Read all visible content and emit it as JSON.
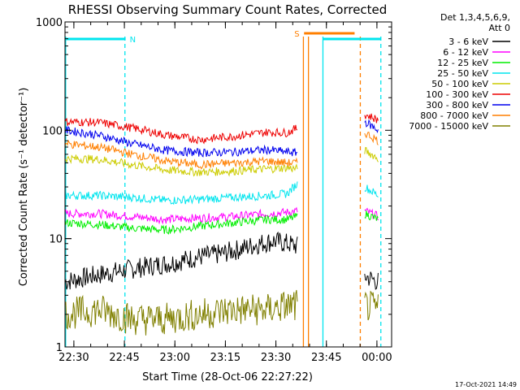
{
  "chart_data": {
    "type": "line",
    "title": "RHESSI Observing Summary Count Rates, Corrected",
    "xlabel": "Start Time (28-Oct-06 22:27:22)",
    "ylabel": "Corrected Count Rate (s⁻¹ detector⁻¹)",
    "yscale": "log",
    "ylim": [
      1,
      1000
    ],
    "xlim_minutes_after_22_27_22": [
      0,
      97
    ],
    "x_ticks": [
      "22:30",
      "22:45",
      "23:00",
      "23:15",
      "23:30",
      "23:45",
      "00:00"
    ],
    "y_ticks": [
      "1",
      "10",
      "100",
      "1000"
    ],
    "legend_header": [
      "Det 1,3,4,5,6,9,",
      "Att 0"
    ],
    "legend_position": "right",
    "timestamp": "17-Oct-2021 14:49",
    "flags": [
      {
        "label": "N",
        "color": "#00e5ee",
        "segments": [
          [
            0,
            18.0
          ],
          [
            76.6,
            93.8
          ]
        ]
      },
      {
        "label": "S",
        "color": "#ff7f00",
        "segments": [
          [
            71.0,
            86.0
          ]
        ]
      }
    ],
    "vlines": [
      {
        "t": 0.2,
        "color": "#00e5ee",
        "style": "solid"
      },
      {
        "t": 17.8,
        "color": "#00e5ee",
        "style": "dashed"
      },
      {
        "t": 70.8,
        "color": "#ff7f00",
        "style": "solid"
      },
      {
        "t": 72.3,
        "color": "#ff7f00",
        "style": "solid"
      },
      {
        "t": 76.6,
        "color": "#00e5ee",
        "style": "solid"
      },
      {
        "t": 87.7,
        "color": "#ff7f00",
        "style": "dashed"
      },
      {
        "t": 93.8,
        "color": "#00e5ee",
        "style": "dashed"
      }
    ],
    "series": [
      {
        "name": "3 - 6 keV",
        "color": "#000000",
        "points": [
          [
            0,
            4
          ],
          [
            8,
            4.5
          ],
          [
            16,
            5
          ],
          [
            24,
            5.5
          ],
          [
            32,
            6
          ],
          [
            40,
            6.8
          ],
          [
            46,
            7.2
          ],
          [
            52,
            8
          ],
          [
            58,
            9
          ],
          [
            62,
            9.5
          ],
          [
            66,
            9
          ],
          [
            69,
            8.5
          ]
        ],
        "points_after": [
          [
            89,
            4.5
          ],
          [
            93,
            4
          ]
        ]
      },
      {
        "name": "6 - 12 keV",
        "color": "#ff00ff",
        "points": [
          [
            0,
            17
          ],
          [
            10,
            17
          ],
          [
            20,
            16
          ],
          [
            30,
            15
          ],
          [
            40,
            15.5
          ],
          [
            50,
            16
          ],
          [
            60,
            17
          ],
          [
            66,
            17.5
          ],
          [
            69,
            18
          ]
        ],
        "points_after": [
          [
            89,
            18
          ],
          [
            93,
            16
          ]
        ]
      },
      {
        "name": "12 - 25 keV",
        "color": "#00ee00",
        "points": [
          [
            0,
            14
          ],
          [
            10,
            13.5
          ],
          [
            20,
            12.5
          ],
          [
            30,
            12
          ],
          [
            40,
            13
          ],
          [
            50,
            14
          ],
          [
            60,
            15
          ],
          [
            66,
            15
          ],
          [
            69,
            16
          ]
        ],
        "points_after": [
          [
            89,
            17
          ],
          [
            93,
            15
          ]
        ]
      },
      {
        "name": "25 - 50 keV",
        "color": "#00e5ee",
        "points": [
          [
            0,
            25
          ],
          [
            10,
            25
          ],
          [
            20,
            24
          ],
          [
            30,
            22.5
          ],
          [
            40,
            23
          ],
          [
            50,
            24
          ],
          [
            60,
            25
          ],
          [
            66,
            26
          ],
          [
            69,
            32
          ]
        ],
        "points_after": [
          [
            89,
            30
          ],
          [
            93,
            25
          ]
        ]
      },
      {
        "name": "50 - 100 keV",
        "color": "#cccc00",
        "points": [
          [
            0,
            55
          ],
          [
            10,
            54
          ],
          [
            20,
            48
          ],
          [
            30,
            43
          ],
          [
            40,
            41
          ],
          [
            50,
            42
          ],
          [
            60,
            44
          ],
          [
            66,
            45
          ],
          [
            69,
            44
          ]
        ],
        "points_after": [
          [
            89,
            65
          ],
          [
            93,
            55
          ]
        ]
      },
      {
        "name": "100 - 300 keV",
        "color": "#ee0000",
        "points": [
          [
            0,
            120
          ],
          [
            10,
            118
          ],
          [
            20,
            105
          ],
          [
            30,
            90
          ],
          [
            40,
            82
          ],
          [
            50,
            88
          ],
          [
            60,
            96
          ],
          [
            66,
            95
          ],
          [
            69,
            105
          ]
        ],
        "points_after": [
          [
            89,
            140
          ],
          [
            93,
            125
          ]
        ]
      },
      {
        "name": "300 - 800 keV",
        "color": "#0000ee",
        "points": [
          [
            0,
            100
          ],
          [
            10,
            90
          ],
          [
            20,
            75
          ],
          [
            30,
            65
          ],
          [
            40,
            62
          ],
          [
            50,
            63
          ],
          [
            60,
            66
          ],
          [
            66,
            63
          ],
          [
            69,
            62
          ]
        ],
        "points_after": [
          [
            89,
            120
          ],
          [
            93,
            100
          ]
        ]
      },
      {
        "name": "800 - 7000 keV",
        "color": "#ff7f00",
        "points": [
          [
            0,
            75
          ],
          [
            10,
            70
          ],
          [
            20,
            60
          ],
          [
            30,
            52
          ],
          [
            40,
            48
          ],
          [
            50,
            50
          ],
          [
            60,
            52
          ],
          [
            66,
            50
          ],
          [
            69,
            50
          ]
        ],
        "points_after": [
          [
            89,
            95
          ],
          [
            93,
            80
          ]
        ]
      },
      {
        "name": "7000 - 15000 keV",
        "color": "#808000",
        "points": [
          [
            0,
            2
          ],
          [
            10,
            2.2
          ],
          [
            20,
            1.8
          ],
          [
            30,
            1.8
          ],
          [
            40,
            2
          ],
          [
            50,
            2.2
          ],
          [
            60,
            2.2
          ],
          [
            66,
            2.4
          ],
          [
            69,
            2.4
          ]
        ],
        "points_after": [
          [
            89,
            2.4
          ],
          [
            93,
            2.2
          ]
        ]
      }
    ]
  }
}
